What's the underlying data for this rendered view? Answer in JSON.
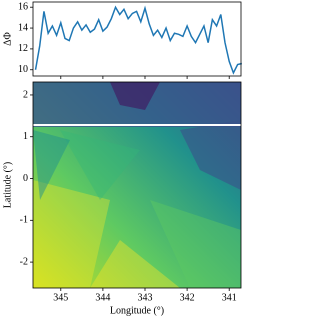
{
  "chart_data": [
    {
      "type": "line",
      "ylabel": "ΔΦ",
      "x": [
        345.6,
        345.5,
        345.4,
        345.3,
        345.2,
        345.1,
        345.0,
        344.9,
        344.8,
        344.7,
        344.6,
        344.5,
        344.4,
        344.3,
        344.2,
        344.1,
        344.0,
        343.9,
        343.8,
        343.7,
        343.6,
        343.5,
        343.4,
        343.3,
        343.2,
        343.1,
        343.0,
        342.9,
        342.8,
        342.7,
        342.6,
        342.5,
        342.4,
        342.3,
        342.2,
        342.1,
        342.0,
        341.9,
        341.8,
        341.7,
        341.6,
        341.5,
        341.4,
        341.3,
        341.2,
        341.1,
        341.0,
        340.9,
        340.8,
        340.7
      ],
      "series": [
        {
          "color": "#1f77b4",
          "values": [
            10,
            12.3,
            15.6,
            13.5,
            14.2,
            13.3,
            14.5,
            13.0,
            12.8,
            14.0,
            14.6,
            13.8,
            14.3,
            13.6,
            13.9,
            14.8,
            13.7,
            14.1,
            14.9,
            16.0,
            15.3,
            15.8,
            14.9,
            15.4,
            15.6,
            14.6,
            15.9,
            14.4,
            13.3,
            13.8,
            13.1,
            14.0,
            12.8,
            13.5,
            13.4,
            13.2,
            14.2,
            13.2,
            12.6,
            13.4,
            14.2,
            12.6,
            14.8,
            14.2,
            15.3,
            12.6,
            10.8,
            9.7,
            10.5,
            10.6
          ]
        }
      ],
      "xlim": [
        345.66,
        340.72
      ],
      "xticks": [
        345,
        344,
        343,
        342,
        341
      ],
      "ylim": [
        9.4,
        16.5
      ],
      "yticks": [
        10,
        12,
        14,
        16
      ]
    },
    {
      "type": "image",
      "xlabel": "Longitude (°)",
      "ylabel": "Latitude (°)",
      "xlim": [
        345.66,
        340.72
      ],
      "xticks": [
        345,
        344,
        343,
        342,
        341
      ],
      "ylim": [
        -2.62,
        2.31
      ],
      "yticks": [
        -2,
        -1,
        0,
        1,
        2
      ],
      "hline": 1.28
    }
  ]
}
